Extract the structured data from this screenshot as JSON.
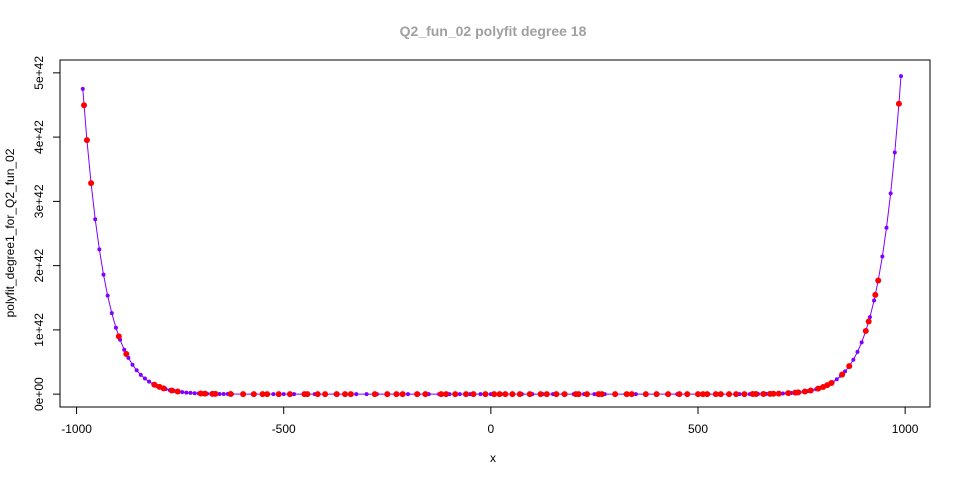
{
  "chart_data": {
    "type": "scatter",
    "title": "Q2_fun_02 polyfit degree 18",
    "xlabel": "x",
    "ylabel": "polyfit_degree1_for_Q2_fun_02",
    "xlim": [
      -1040,
      1060
    ],
    "ylim": [
      -2e+41,
      5.2e+42
    ],
    "x_ticks": [
      -1000,
      -500,
      0,
      500,
      1000
    ],
    "x_tick_labels": [
      "-1000",
      "-500",
      "0",
      "500",
      "1000"
    ],
    "y_ticks": [
      0,
      1e+42,
      2e+42,
      3e+42,
      4e+42,
      5e+42
    ],
    "y_tick_labels": [
      "0e+00",
      "1e+42",
      "2e+42",
      "3e+42",
      "4e+42",
      "5e+42"
    ],
    "grid": false,
    "legend": "none",
    "curve_model": {
      "description": "fitted polynomial values shown as a line with markers",
      "x_range": [
        -985,
        990
      ],
      "y_at_min_x": 4.75e+42,
      "y_at_max_x": 4.95e+42
    },
    "series": [
      {
        "name": "",
        "role": "fit-line",
        "color": "#8000ff",
        "points_x": [
          -985,
          -975,
          -965,
          -955,
          -945,
          -935,
          -925,
          -915,
          -905,
          -895,
          -885,
          -875,
          -865,
          -855,
          -845,
          -835,
          -825,
          -815,
          -805,
          -795,
          -785,
          -775,
          -765,
          -755,
          -745,
          -735,
          -725,
          -715,
          -705,
          -695,
          -685,
          -675,
          -665,
          -655,
          -645,
          -635,
          -625,
          -600,
          -575,
          -550,
          -525,
          -500,
          -475,
          -450,
          -425,
          -400,
          -375,
          -350,
          -325,
          -300,
          -275,
          -250,
          -225,
          -200,
          -175,
          -150,
          -125,
          -100,
          -75,
          -50,
          -25,
          0,
          25,
          50,
          75,
          100,
          125,
          150,
          175,
          200,
          225,
          250,
          275,
          300,
          325,
          350,
          375,
          400,
          425,
          450,
          475,
          500,
          525,
          550,
          575,
          600,
          625,
          635,
          645,
          655,
          665,
          675,
          685,
          695,
          705,
          715,
          725,
          735,
          745,
          755,
          765,
          775,
          785,
          795,
          805,
          815,
          825,
          835,
          845,
          855,
          865,
          875,
          885,
          895,
          905,
          915,
          925,
          935,
          945,
          955,
          965,
          975,
          985,
          990
        ]
      },
      {
        "name": "",
        "role": "observations",
        "color": "#ff0000",
        "points_x": [
          -982,
          -975,
          -965,
          -898,
          -880,
          -812,
          -800,
          -790,
          -770,
          -756,
          -700,
          -690,
          -672,
          -665,
          -628,
          -598,
          -572,
          -551,
          -540,
          -512,
          -485,
          -450,
          -443,
          -418,
          -400,
          -372,
          -352,
          -338,
          -280,
          -250,
          -228,
          -213,
          -178,
          -158,
          -120,
          -108,
          -86,
          -60,
          -42,
          -13,
          8,
          21,
          35,
          52,
          70,
          94,
          120,
          135,
          158,
          178,
          205,
          212,
          232,
          260,
          268,
          300,
          328,
          340,
          374,
          400,
          428,
          455,
          474,
          500,
          512,
          522,
          543,
          555,
          575,
          592,
          612,
          632,
          640,
          658,
          674,
          682,
          695,
          718,
          735,
          742,
          758,
          772,
          790,
          802,
          812,
          822,
          848,
          865,
          905,
          912,
          928,
          935,
          985
        ]
      }
    ]
  }
}
